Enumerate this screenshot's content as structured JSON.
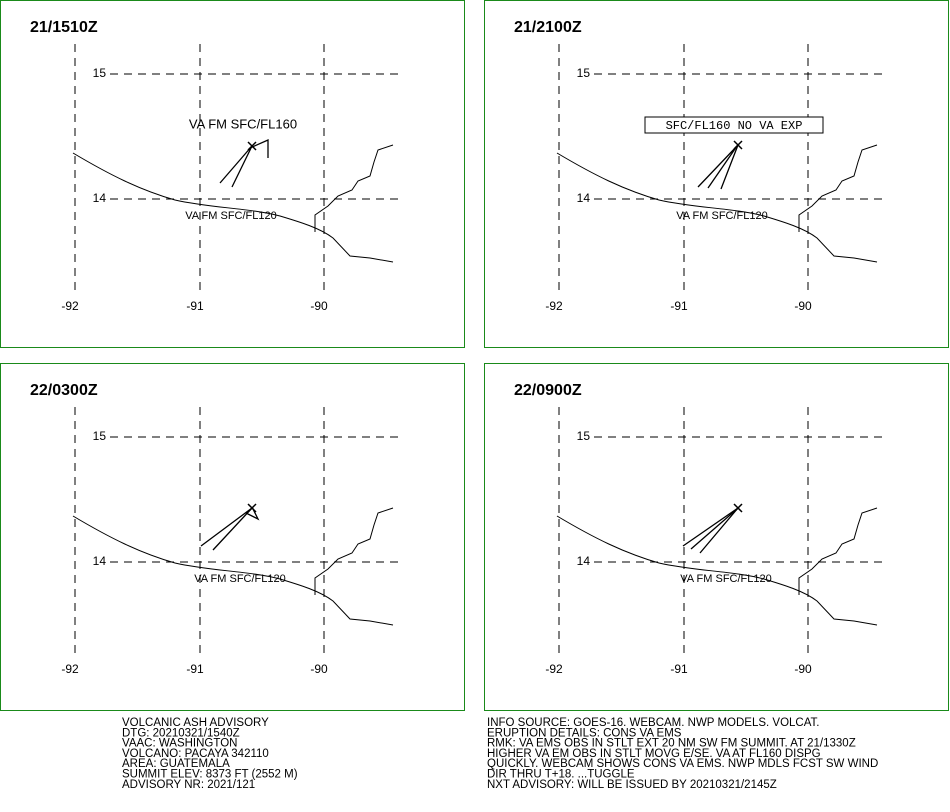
{
  "panels": [
    {
      "time": "21/1510Z",
      "labels": [
        "VA FM SFC/FL160",
        "VA FM SFC/FL120"
      ]
    },
    {
      "time": "21/2100Z",
      "labels": [
        "SFC/FL160 NO VA EXP",
        "VA FM SFC/FL120"
      ]
    },
    {
      "time": "22/0300Z",
      "labels": [
        "VA FM SFC/FL120"
      ]
    },
    {
      "time": "22/0900Z",
      "labels": [
        "VA FM SFC/FL120"
      ]
    }
  ],
  "grid": {
    "lat_labels": [
      "15",
      "14"
    ],
    "lon_labels": [
      "-92",
      "-91",
      "-90"
    ]
  },
  "advisory": {
    "left": [
      "VOLCANIC ASH ADVISORY",
      "DTG: 20210321/1540Z",
      "VAAC: WASHINGTON",
      "VOLCANO: PACAYA 342110",
      "AREA: GUATEMALA",
      "SUMMIT ELEV: 8373 FT (2552 M)",
      "ADVISORY NR: 2021/121"
    ],
    "right": [
      "INFO SOURCE: GOES-16. WEBCAM. NWP MODELS. VOLCAT.",
      "ERUPTION DETAILS: CONS VA EMS",
      "RMK: VA EMS OBS IN STLT EXT 20 NM SW FM SUMMIT. AT 21/1330Z",
      "HIGHER VA EM OBS IN STLT MOVG E/SE. VA AT FL160 DISPG",
      "QUICKLY. WEBCAM SHOWS CONS VA EMS. NWP MDLS FCST SW WIND",
      "DIR THRU T+18. ...TUGGLE",
      "NXT ADVISORY: WILL BE ISSUED BY 20210321/2145Z"
    ]
  }
}
